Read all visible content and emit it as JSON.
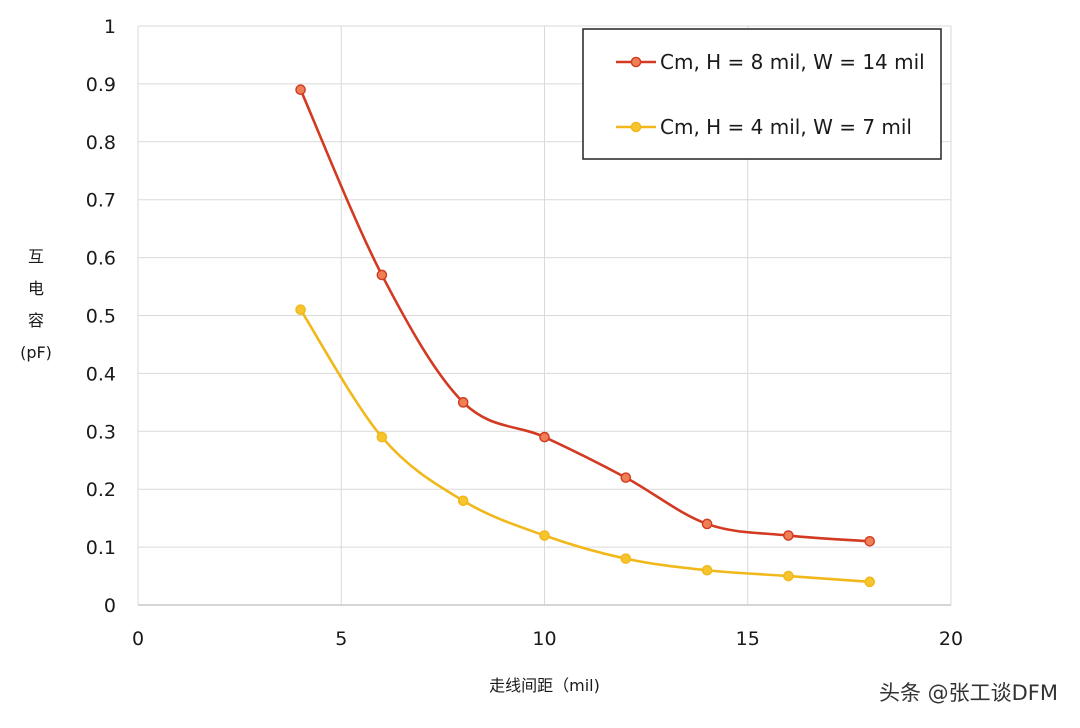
{
  "chart_data": {
    "type": "line",
    "xlabel": "走线间距（mil)",
    "ylabel_lines": [
      "互",
      "电",
      "容",
      "(pF)"
    ],
    "xlim": [
      0,
      20
    ],
    "ylim": [
      0,
      1
    ],
    "xticks": [
      0,
      5,
      10,
      15,
      20
    ],
    "yticks": [
      0,
      0.1,
      0.2,
      0.3,
      0.4,
      0.5,
      0.6,
      0.7,
      0.8,
      0.9,
      1
    ],
    "grid": true,
    "legend_position": "top-right",
    "series": [
      {
        "name": "Cm, H = 8 mil, W = 14 mil",
        "color": "#d23a21",
        "marker_fill": "#ef7f54",
        "x": [
          4,
          6,
          8,
          10,
          12,
          14,
          16,
          18
        ],
        "y": [
          0.89,
          0.57,
          0.35,
          0.29,
          0.22,
          0.14,
          0.12,
          0.11
        ]
      },
      {
        "name": "Cm, H = 4 mil, W = 7 mil",
        "color": "#f0b81a",
        "marker_fill": "#f6c52d",
        "x": [
          4,
          6,
          8,
          10,
          12,
          14,
          16,
          18
        ],
        "y": [
          0.51,
          0.29,
          0.18,
          0.12,
          0.08,
          0.06,
          0.05,
          0.04
        ]
      }
    ]
  },
  "watermark": "头条 @张工谈DFM"
}
